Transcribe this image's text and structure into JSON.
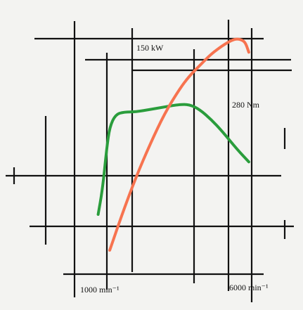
{
  "chart_data": {
    "type": "line",
    "annotations": {
      "power_peak": "150 kW",
      "torque_peak": "280 Nm"
    },
    "x_tick_labels": [
      "1000 min⁻¹",
      "6000 min⁻¹"
    ],
    "x_ticks": [
      1000,
      6000
    ],
    "series": [
      {
        "color": "#2a9d3c",
        "x": [
          700,
          850,
          1000,
          1100,
          1300,
          1600,
          2000,
          2500,
          3000,
          3500,
          3850,
          4200,
          4600,
          5000,
          5500,
          5900
        ],
        "y": [
          235,
          245,
          262,
          270,
          275,
          276,
          276,
          277,
          278,
          279,
          279,
          277,
          273,
          268,
          261,
          256
        ]
      },
      {
        "color": "#f7734f",
        "x": [
          1100,
          1500,
          2000,
          2500,
          3000,
          3500,
          3850,
          4200,
          4600,
          5000,
          5300,
          5500,
          5700,
          5800,
          5900
        ],
        "y": [
          25,
          45,
          68,
          88,
          106,
          120,
          128,
          134,
          141,
          146,
          149,
          150,
          149,
          147,
          142
        ]
      }
    ]
  }
}
